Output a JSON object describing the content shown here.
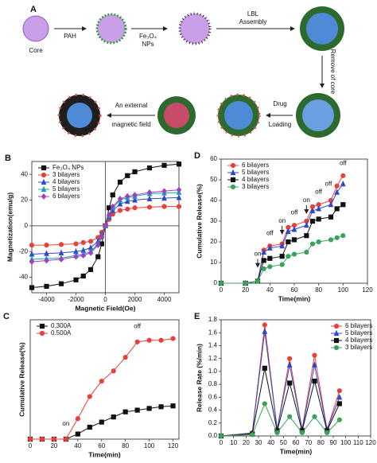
{
  "diagram": {
    "panel": "A",
    "core": "Core",
    "pah": "PAH",
    "np": [
      "Fe₃O₄",
      "NPs"
    ],
    "lbl": [
      "LBL",
      "Assembly"
    ],
    "remove": "Remove of core",
    "drug": [
      "Drug",
      "Loading"
    ],
    "field": [
      "An external",
      "magnetic field"
    ]
  },
  "chart_data": [
    {
      "type": "line",
      "panel": "B",
      "x_label": "Magnetic Field(Oe)",
      "y_label": "Magnetization(emu/g)",
      "x": [
        -5000,
        -4000,
        -3000,
        -2000,
        -1500,
        -1000,
        -500,
        -250,
        0,
        250,
        500,
        1000,
        1500,
        2000,
        3000,
        4000,
        5000
      ],
      "xlim": [
        -5000,
        5000
      ],
      "xticks": [
        -4000,
        -2000,
        0,
        2000,
        4000
      ],
      "ylim": [
        -52,
        50
      ],
      "yticks": [
        -40,
        -20,
        0,
        20,
        40
      ],
      "zero_lines": true,
      "legend": "upper left",
      "series": [
        {
          "name": "Fe₃O₄ NPs",
          "color": "#111111",
          "marker": "square",
          "values": [
            -48,
            -47,
            -45,
            -42,
            -39,
            -34,
            -24,
            -14,
            0,
            14,
            24,
            34,
            39,
            42,
            45,
            47,
            48
          ]
        },
        {
          "name": "3 bilayers",
          "color": "#e8413a",
          "marker": "circle",
          "values": [
            -15,
            -15,
            -14.5,
            -14,
            -13,
            -12,
            -9,
            -5,
            0,
            5,
            9,
            12,
            13,
            14,
            14.5,
            15,
            15
          ]
        },
        {
          "name": "4 bilayers",
          "color": "#2f49c8",
          "marker": "triangle",
          "values": [
            -22,
            -21.5,
            -21,
            -20,
            -19,
            -17,
            -12,
            -7,
            0,
            7,
            12,
            17,
            19,
            20,
            21,
            21.5,
            22
          ]
        },
        {
          "name": "5 bilayers",
          "color": "#18a0b0",
          "marker": "triangle",
          "values": [
            -26,
            -25.5,
            -25,
            -23,
            -22,
            -20,
            -14,
            -8,
            0,
            8,
            14,
            20,
            22,
            23,
            25,
            25.5,
            26
          ]
        },
        {
          "name": "6 bilayers",
          "color": "#a040c0",
          "marker": "diamond",
          "values": [
            -28,
            -27,
            -26,
            -24,
            -23,
            -21,
            -15,
            -8.5,
            0,
            8.5,
            15,
            21,
            23,
            24,
            26,
            27,
            28
          ]
        }
      ]
    },
    {
      "type": "line",
      "panel": "D",
      "x_label": "Time(min)",
      "y_label": "Cumulative Release(%)",
      "x": [
        0,
        20,
        30,
        35,
        40,
        50,
        55,
        60,
        70,
        75,
        80,
        90,
        95,
        100
      ],
      "xlim": [
        0,
        120
      ],
      "xticks": [
        0,
        20,
        40,
        60,
        80,
        100,
        120
      ],
      "ylim": [
        0,
        60
      ],
      "yticks": [
        0,
        10,
        20,
        30,
        40,
        50,
        60
      ],
      "legend": "upper left",
      "series": [
        {
          "name": "6 bilayers",
          "color": "#e8413a",
          "marker": "circle",
          "values": [
            0,
            0,
            1,
            16,
            18,
            19,
            27,
            28,
            30,
            37,
            38,
            40,
            47,
            52
          ]
        },
        {
          "name": "5 bilayers",
          "color": "#2f49c8",
          "marker": "triangle",
          "values": [
            0,
            0,
            1,
            15,
            17,
            18,
            25,
            26,
            28,
            35,
            36,
            38,
            44,
            48
          ]
        },
        {
          "name": "4 bilayers",
          "color": "#111111",
          "marker": "square",
          "values": [
            0,
            0,
            1,
            11,
            12,
            13,
            20,
            21,
            23,
            30,
            31,
            32,
            36,
            38
          ]
        },
        {
          "name": "3 bilayers",
          "color": "#3aa35a",
          "marker": "circle",
          "values": [
            0,
            0,
            1,
            7,
            8,
            9,
            13,
            14,
            15,
            19,
            20,
            21,
            22,
            23
          ]
        }
      ],
      "annotations": [
        {
          "text": "on",
          "x": 30,
          "y": 14,
          "arrow": true
        },
        {
          "text": "off",
          "x": 40,
          "y": 24
        },
        {
          "text": "on",
          "x": 50,
          "y": 30,
          "arrow": true
        },
        {
          "text": "off",
          "x": 60,
          "y": 34
        },
        {
          "text": "on",
          "x": 70,
          "y": 40,
          "arrow": true
        },
        {
          "text": "off",
          "x": 80,
          "y": 44
        },
        {
          "text": "off",
          "x": 88,
          "y": 48
        },
        {
          "text": "off",
          "x": 100,
          "y": 58
        }
      ]
    },
    {
      "type": "line",
      "panel": "C",
      "x_label": "Time(min)",
      "y_label": "Cumulative Release(%)",
      "x": [
        0,
        10,
        20,
        30,
        40,
        50,
        60,
        70,
        80,
        90,
        100,
        110,
        120
      ],
      "xlim": [
        0,
        125
      ],
      "xticks": [
        0,
        20,
        40,
        60,
        80,
        100,
        120
      ],
      "ylim": [
        0,
        70
      ],
      "legend": "upper left",
      "series": [
        {
          "name": "0.300A",
          "color": "#111111",
          "marker": "square",
          "values": [
            0,
            0,
            0,
            0,
            3,
            7,
            10,
            13,
            16,
            17,
            18,
            19,
            19.5
          ]
        },
        {
          "name": "0.500A",
          "color": "#e8413a",
          "marker": "circle",
          "values": [
            0,
            0,
            0,
            0,
            12,
            25,
            34,
            40,
            48,
            57,
            58,
            58,
            59
          ]
        }
      ],
      "annotations": [
        {
          "text": "on",
          "x": 30,
          "y": 9
        },
        {
          "text": "off",
          "x": 90,
          "y": 66
        }
      ]
    },
    {
      "type": "line",
      "panel": "E",
      "x_label": "Time(min)",
      "y_label": "Release Rate (%/min)",
      "x": [
        0,
        25,
        35,
        45,
        55,
        65,
        75,
        85,
        95
      ],
      "xlim": [
        0,
        120
      ],
      "xticks": [
        0,
        10,
        20,
        30,
        40,
        50,
        60,
        70,
        80,
        90,
        100,
        110,
        120
      ],
      "ylim": [
        0,
        1.8
      ],
      "yticks": [
        {
          "value": 0,
          "label": "0.0"
        },
        0.2,
        0.4,
        0.6,
        0.8,
        {
          "value": 1,
          "label": "1.0"
        },
        1.2,
        1.4,
        1.6,
        1.8
      ],
      "legend": "upper right",
      "series": [
        {
          "name": "6 bilayers",
          "color": "#e8413a",
          "marker": "circle",
          "values": [
            0,
            0.05,
            1.72,
            0.1,
            1.2,
            0.1,
            1.25,
            0.1,
            0.7
          ]
        },
        {
          "name": "5 bilayers",
          "color": "#2f49c8",
          "marker": "triangle",
          "values": [
            0,
            0.04,
            1.62,
            0.1,
            1.1,
            0.1,
            1.1,
            0.1,
            0.6
          ]
        },
        {
          "name": "4 bilayers",
          "color": "#111111",
          "marker": "square",
          "values": [
            0,
            0.03,
            1.05,
            0.08,
            0.82,
            0.08,
            0.85,
            0.08,
            0.5
          ]
        },
        {
          "name": "3 bilayers",
          "color": "#3aa35a",
          "marker": "circle",
          "values": [
            0,
            0.02,
            0.5,
            0.05,
            0.3,
            0.05,
            0.3,
            0.05,
            0.25
          ]
        }
      ]
    }
  ]
}
